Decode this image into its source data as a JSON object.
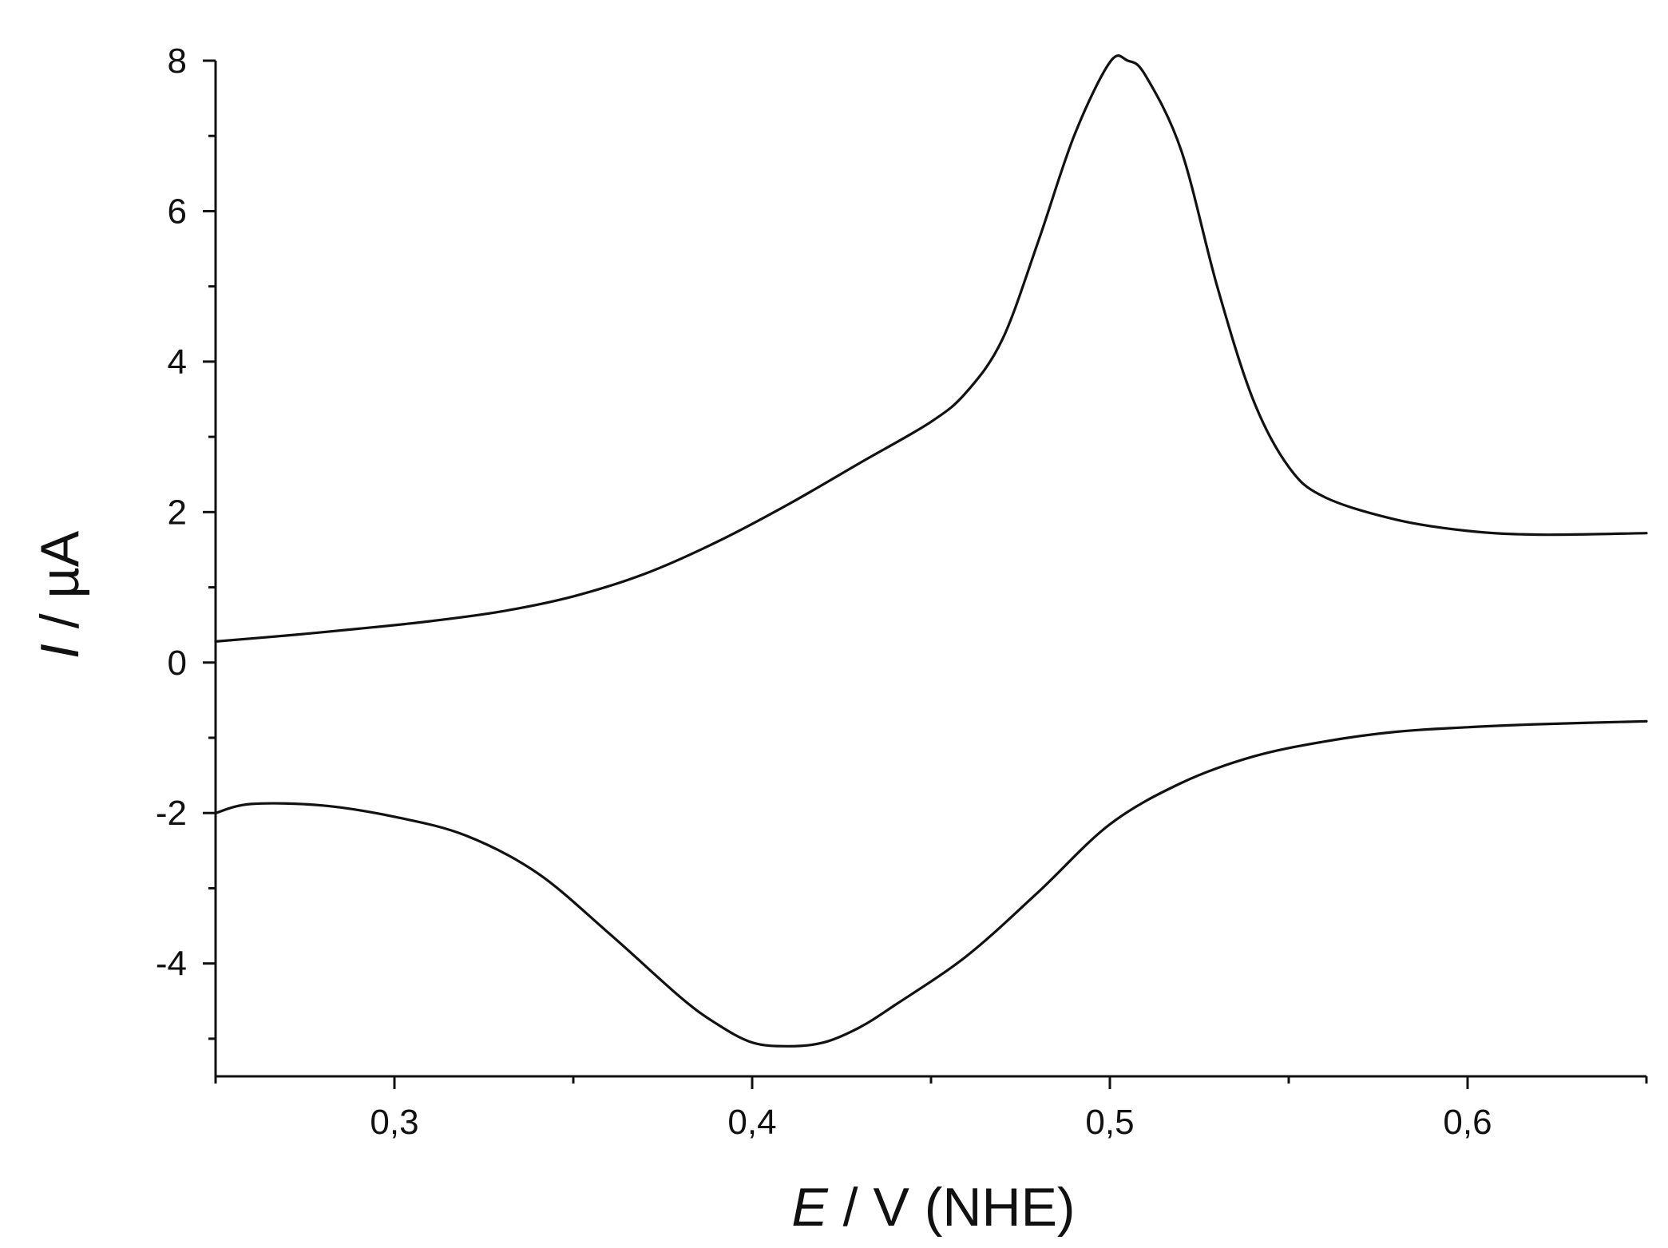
{
  "chart_data": {
    "type": "line",
    "title": "",
    "xlabel": {
      "var": "E",
      "rest": " / V (NHE)"
    },
    "ylabel": {
      "var": "I",
      "rest": " / µA"
    },
    "xlim": [
      0.25,
      0.65
    ],
    "ylim": [
      -5.5,
      8
    ],
    "x_ticks": [
      {
        "value": 0.3,
        "label": "0,3"
      },
      {
        "value": 0.4,
        "label": "0,4"
      },
      {
        "value": 0.5,
        "label": "0,5"
      },
      {
        "value": 0.6,
        "label": "0,6"
      }
    ],
    "x_minor_ticks": [
      0.25,
      0.35,
      0.45,
      0.55,
      0.65
    ],
    "y_ticks": [
      {
        "value": -4,
        "label": "-4"
      },
      {
        "value": -2,
        "label": "-2"
      },
      {
        "value": 0,
        "label": "0"
      },
      {
        "value": 2,
        "label": "2"
      },
      {
        "value": 4,
        "label": "4"
      },
      {
        "value": 6,
        "label": "6"
      },
      {
        "value": 8,
        "label": "8"
      }
    ],
    "y_minor_ticks": [
      -5,
      -3,
      -1,
      1,
      3,
      5,
      7
    ],
    "grid": false,
    "legend": "none",
    "line_color": "#111111",
    "series": [
      {
        "x": [
          0.25,
          0.27,
          0.29,
          0.31,
          0.33,
          0.35,
          0.37,
          0.39,
          0.41,
          0.43,
          0.45,
          0.46,
          0.47,
          0.48,
          0.49,
          0.5,
          0.505,
          0.51,
          0.52,
          0.53,
          0.54,
          0.55,
          0.56,
          0.58,
          0.6,
          0.62,
          0.65
        ],
        "y": [
          0.28,
          0.36,
          0.45,
          0.55,
          0.68,
          0.88,
          1.18,
          1.6,
          2.1,
          2.65,
          3.2,
          3.6,
          4.3,
          5.6,
          7.0,
          7.98,
          8.0,
          7.8,
          6.8,
          5.0,
          3.5,
          2.6,
          2.2,
          1.9,
          1.75,
          1.7,
          1.72
        ]
      },
      {
        "x": [
          0.25,
          0.26,
          0.28,
          0.3,
          0.32,
          0.34,
          0.36,
          0.38,
          0.39,
          0.4,
          0.41,
          0.42,
          0.43,
          0.44,
          0.46,
          0.48,
          0.5,
          0.52,
          0.54,
          0.56,
          0.58,
          0.6,
          0.62,
          0.65
        ],
        "y": [
          -2.0,
          -1.88,
          -1.9,
          -2.05,
          -2.3,
          -2.8,
          -3.6,
          -4.45,
          -4.8,
          -5.05,
          -5.1,
          -5.05,
          -4.85,
          -4.55,
          -3.9,
          -3.05,
          -2.15,
          -1.6,
          -1.25,
          -1.05,
          -0.92,
          -0.86,
          -0.82,
          -0.78
        ]
      }
    ]
  }
}
